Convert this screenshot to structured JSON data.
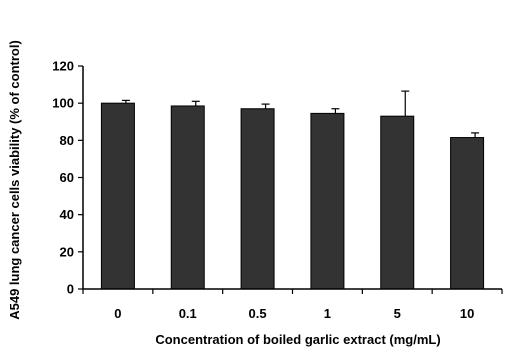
{
  "chart_data": {
    "type": "bar",
    "title": "",
    "xlabel": "Concentration  of boiled garlic extract  (mg/mL)",
    "ylabel": "A549 lung cancer cells viability  (% of control)",
    "categories": [
      "0",
      "0.1",
      "0.5",
      "1",
      "5",
      "10"
    ],
    "values": [
      100,
      98.5,
      97,
      94.5,
      93,
      81.5
    ],
    "errors": [
      1.5,
      2.5,
      2.5,
      2.5,
      13.5,
      2.5
    ],
    "ylim": [
      0,
      120
    ],
    "yticks": [
      "0",
      "20",
      "40",
      "60",
      "80",
      "100",
      "120"
    ],
    "grid": false,
    "bar_color": "#333333"
  }
}
